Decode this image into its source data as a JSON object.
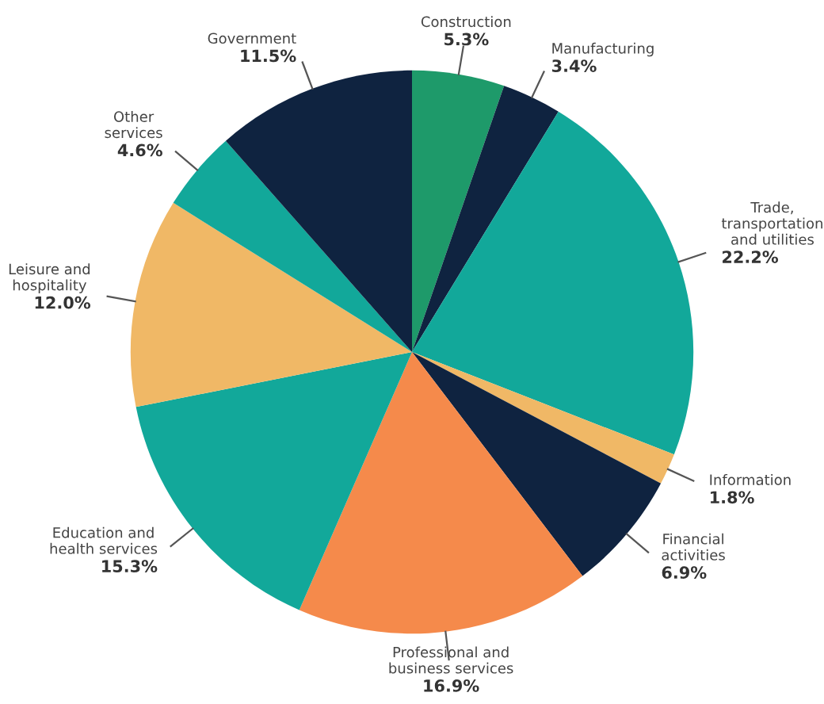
{
  "chart_data": {
    "type": "pie",
    "categories": [
      "Construction",
      "Manufacturing",
      "Trade,\ntransportation\nand utilities",
      "Information",
      "Financial\nactivities",
      "Professional and\nbusiness services",
      "Education and\nhealth services",
      "Leisure and\nhospitality",
      "Other\nservices",
      "Government"
    ],
    "values": [
      5.3,
      3.4,
      22.2,
      1.8,
      6.9,
      16.9,
      15.3,
      12.0,
      4.6,
      11.5
    ],
    "value_labels": [
      "5.3%",
      "3.4%",
      "22.2%",
      "1.8%",
      "6.9%",
      "16.9%",
      "15.3%",
      "12.0%",
      "4.6%",
      "11.5%"
    ],
    "colors": [
      "#1e9a6a",
      "#0f2340",
      "#12a89a",
      "#f0b866",
      "#0f2340",
      "#f58a4b",
      "#12a89a",
      "#f0b866",
      "#12a89a",
      "#0f2340"
    ]
  }
}
